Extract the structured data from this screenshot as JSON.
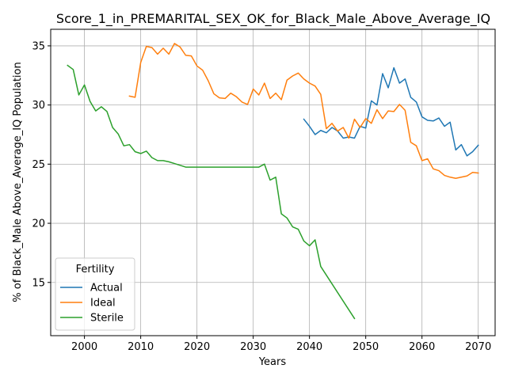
{
  "chart_data": {
    "type": "line",
    "title": "Score_1_in_PREMARITAL_SEX_OK_for_Black_Male_Above_Average_IQ",
    "xlabel": "Years",
    "ylabel": "% of Black_Male Above_Average_IQ Population",
    "xlim": [
      1994,
      2073
    ],
    "ylim": [
      10.5,
      36.4
    ],
    "xticks": [
      2000,
      2010,
      2020,
      2030,
      2040,
      2050,
      2060,
      2070
    ],
    "yticks": [
      15,
      20,
      25,
      30,
      35
    ],
    "grid": true,
    "legend": {
      "title": "Fertility",
      "placement": "lower-left"
    },
    "series": [
      {
        "name": "Actual",
        "color": "#1f77b4",
        "x": [
          2039,
          2040,
          2041,
          2042,
          2043,
          2044,
          2045,
          2046,
          2047,
          2048,
          2049,
          2050,
          2051,
          2052,
          2053,
          2054,
          2055,
          2056,
          2057,
          2058,
          2059,
          2060,
          2061,
          2062,
          2063,
          2064,
          2065,
          2066,
          2067,
          2068,
          2069,
          2070
        ],
        "y": [
          28.8,
          28.2,
          27.5,
          27.85,
          27.65,
          28.1,
          27.8,
          27.2,
          27.3,
          27.2,
          28.2,
          28.05,
          30.35,
          30.0,
          32.65,
          31.45,
          33.15,
          31.85,
          32.2,
          30.65,
          30.25,
          29.0,
          28.7,
          28.65,
          28.9,
          28.2,
          28.55,
          26.2,
          26.65,
          25.7,
          26.05,
          26.6
        ]
      },
      {
        "name": "Ideal",
        "color": "#ff7f0e",
        "x": [
          2008,
          2009,
          2010,
          2011,
          2012,
          2013,
          2014,
          2015,
          2016,
          2017,
          2018,
          2019,
          2020,
          2021,
          2022,
          2023,
          2024,
          2025,
          2026,
          2027,
          2028,
          2029,
          2030,
          2031,
          2032,
          2033,
          2034,
          2035,
          2036,
          2037,
          2038,
          2039,
          2040,
          2041,
          2042,
          2043,
          2044,
          2045,
          2046,
          2047,
          2048,
          2049,
          2050,
          2051,
          2052,
          2053,
          2054,
          2055,
          2056,
          2057,
          2058,
          2059,
          2060,
          2061,
          2062,
          2063,
          2064,
          2065,
          2066,
          2067,
          2068,
          2069,
          2070
        ],
        "y": [
          30.75,
          30.65,
          33.6,
          34.95,
          34.85,
          34.3,
          34.8,
          34.3,
          35.2,
          34.9,
          34.2,
          34.15,
          33.3,
          32.95,
          32.05,
          30.95,
          30.6,
          30.55,
          31.0,
          30.7,
          30.25,
          30.05,
          31.35,
          30.85,
          31.85,
          30.55,
          31.0,
          30.45,
          32.1,
          32.45,
          32.7,
          32.2,
          31.85,
          31.6,
          30.9,
          28.0,
          28.45,
          27.8,
          28.1,
          27.2,
          28.8,
          28.1,
          28.85,
          28.45,
          29.6,
          28.85,
          29.5,
          29.45,
          30.05,
          29.55,
          26.85,
          26.55,
          25.3,
          25.45,
          24.6,
          24.45,
          24.05,
          23.9,
          23.8,
          23.9,
          24.0,
          24.3,
          24.25
        ]
      },
      {
        "name": "Sterile",
        "color": "#2ca02c",
        "x": [
          1997,
          1998,
          1999,
          2000,
          2001,
          2002,
          2003,
          2004,
          2005,
          2006,
          2007,
          2008,
          2009,
          2010,
          2011,
          2012,
          2013,
          2014,
          2015,
          2016,
          2017,
          2018,
          2019,
          2020,
          2021,
          2022,
          2023,
          2024,
          2025,
          2026,
          2027,
          2028,
          2029,
          2030,
          2031,
          2032,
          2033,
          2034,
          2035,
          2036,
          2037,
          2038,
          2039,
          2040,
          2041,
          2042,
          2048
        ],
        "y": [
          33.35,
          33.0,
          30.85,
          31.7,
          30.3,
          29.5,
          29.85,
          29.45,
          28.1,
          27.55,
          26.55,
          26.65,
          26.05,
          25.9,
          26.1,
          25.55,
          25.3,
          25.3,
          25.2,
          25.05,
          24.9,
          24.75,
          24.75,
          24.75,
          24.75,
          24.75,
          24.75,
          24.75,
          24.75,
          24.75,
          24.75,
          24.75,
          24.75,
          24.75,
          24.75,
          25.0,
          23.65,
          23.9,
          20.8,
          20.45,
          19.7,
          19.5,
          18.5,
          18.1,
          18.6,
          16.35,
          11.95
        ]
      }
    ]
  }
}
